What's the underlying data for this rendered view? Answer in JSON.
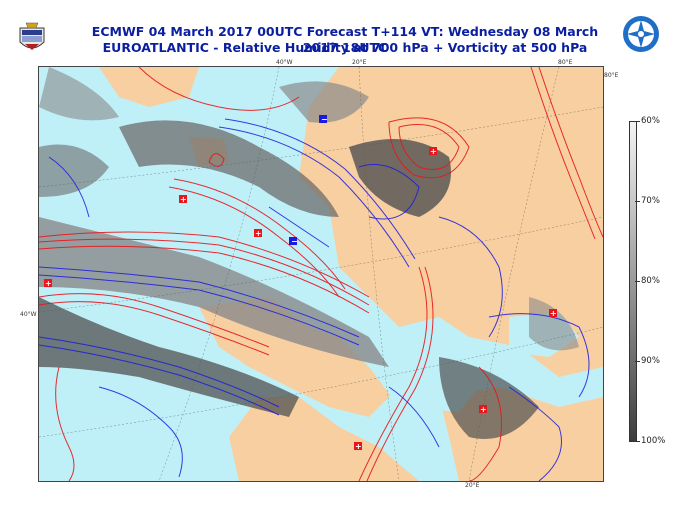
{
  "header": {
    "title_line1": "ECMWF 04 March 2017 00UTC Forecast T+114 VT: Wednesday 08 March 2017 18UTC",
    "title_line2": "EUROATLANTIC - Relative Humidity at 700 hPa + Vorticity at 500 hPa"
  },
  "logos": {
    "left": "air-force-crest",
    "right": "nato-style-compass-emblem"
  },
  "colors": {
    "sea": "#bff0f8",
    "land": "#f7cfa0",
    "rh_light": "#bfbfbf",
    "rh_mid": "#8a8a8a",
    "rh_dark": "#505050",
    "vort_positive": "#e8161b",
    "vort_negative": "#1a1ae0"
  },
  "grid_labels": {
    "top_40w": "40°W",
    "top_20e": "20°E",
    "top_80e": "80°E",
    "right_80e": "80°E",
    "left_40w": "40°W",
    "bottom_20e": "20°E"
  },
  "colorbar": {
    "labels": [
      "60%",
      "70%",
      "80%",
      "90%",
      "100%"
    ],
    "levels": [
      60,
      70,
      80,
      90,
      100
    ],
    "colors": [
      "#f4f4f4",
      "#c8c8c8",
      "#9a9a9a",
      "#6c6c6c",
      "#3c3c3c"
    ]
  }
}
